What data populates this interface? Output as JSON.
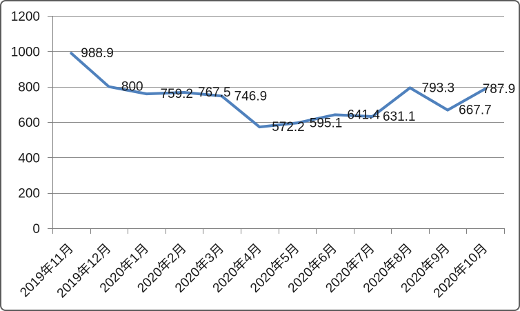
{
  "chart_data": {
    "type": "line",
    "title": "",
    "xlabel": "",
    "ylabel": "",
    "categories": [
      "2019年11月",
      "2019年12月",
      "2020年1月",
      "2020年2月",
      "2020年3月",
      "2020年4月",
      "2020年5月",
      "2020年6月",
      "2020年7月",
      "2020年8月",
      "2020年9月",
      "2020年10月"
    ],
    "values": [
      988.9,
      800,
      759.2,
      767.5,
      746.9,
      572.2,
      595.1,
      641.4,
      631.1,
      793.3,
      667.7,
      787.9
    ],
    "data_labels": [
      "988.9",
      "800",
      "759.2",
      "767.5",
      "746.9",
      "572.2",
      "595.1",
      "641.4",
      "631.1",
      "793.3",
      "667.7",
      "787.9"
    ],
    "ylim": [
      0,
      1200
    ],
    "y_ticks": [
      0,
      200,
      400,
      600,
      800,
      1000,
      1200
    ],
    "y_tick_labels": [
      "0",
      "200",
      "400",
      "600",
      "800",
      "1000",
      "1200"
    ],
    "grid": true,
    "legend": "none",
    "colors": {
      "line": "#4F81BD",
      "gridline": "#8C8C8C",
      "axis": "#808080",
      "text": "#1a1a1a",
      "frame_border": "#5a5a5a",
      "background": "#FFFFFF"
    }
  }
}
